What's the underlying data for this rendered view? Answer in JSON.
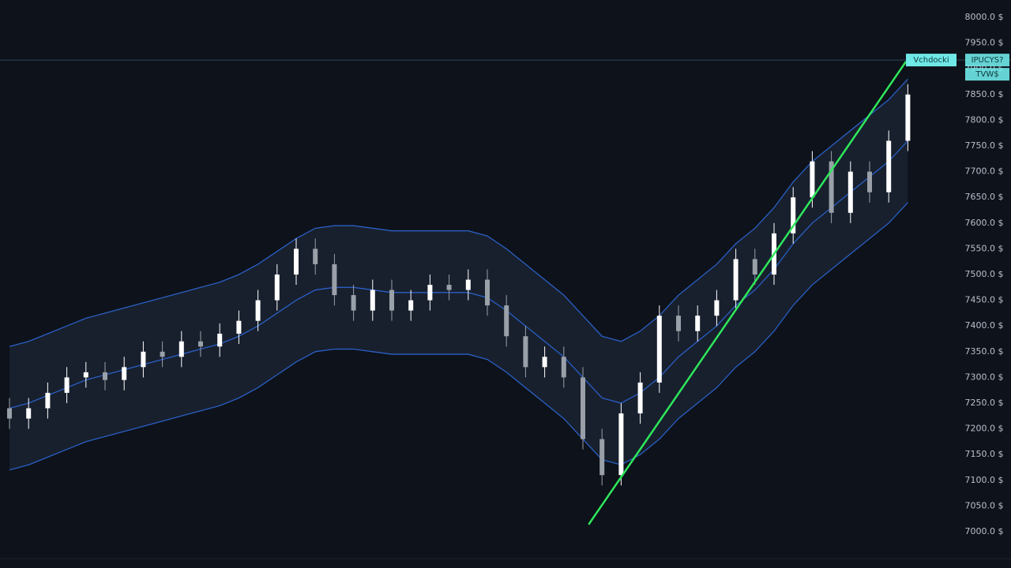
{
  "chart_data": {
    "type": "candlestick",
    "up_color": "#ffffff",
    "down_color": "#9aa0a8",
    "band_line_color": "#2a5fc4",
    "band_fill": "#1c2638",
    "trend_color": "#2ee85a",
    "ylim": [
      7000,
      8000
    ],
    "yticks": [
      {
        "value": 8000,
        "label": "8000.0 $"
      },
      {
        "value": 7950,
        "label": "7950.0 $"
      },
      {
        "value": 7900,
        "label": "7900.0 $"
      },
      {
        "value": 7850,
        "label": "7850.0 $"
      },
      {
        "value": 7800,
        "label": "7800.0 $"
      },
      {
        "value": 7750,
        "label": "7750.0 $"
      },
      {
        "value": 7700,
        "label": "7700.0 $"
      },
      {
        "value": 7650,
        "label": "7650.0 $"
      },
      {
        "value": 7600,
        "label": "7600.0 $"
      },
      {
        "value": 7550,
        "label": "7550.0 $"
      },
      {
        "value": 7500,
        "label": "7500.0 $"
      },
      {
        "value": 7450,
        "label": "7450.0 $"
      },
      {
        "value": 7400,
        "label": "7400.0 $"
      },
      {
        "value": 7350,
        "label": "7350.0 $"
      },
      {
        "value": 7300,
        "label": "7300.0 $"
      },
      {
        "value": 7250,
        "label": "7250.0 $"
      },
      {
        "value": 7200,
        "label": "7200.0 $"
      },
      {
        "value": 7150,
        "label": "7150.0 $"
      },
      {
        "value": 7100,
        "label": "7100.0 $"
      },
      {
        "value": 7050,
        "label": "7050.0 $"
      },
      {
        "value": 7000,
        "label": "7000.0 $"
      }
    ],
    "open": [
      7240,
      7220,
      7240,
      7270,
      7300,
      7310,
      7295,
      7320,
      7350,
      7340,
      7370,
      7360,
      7385,
      7410,
      7450,
      7500,
      7550,
      7520,
      7460,
      7430,
      7470,
      7430,
      7450,
      7480,
      7470,
      7490,
      7440,
      7380,
      7320,
      7340,
      7300,
      7180,
      7110,
      7230,
      7290,
      7420,
      7390,
      7420,
      7450,
      7530,
      7500,
      7580,
      7650,
      7720,
      7620,
      7700,
      7660,
      7760
    ],
    "high": [
      7260,
      7260,
      7290,
      7320,
      7330,
      7330,
      7340,
      7370,
      7370,
      7390,
      7390,
      7405,
      7430,
      7470,
      7520,
      7570,
      7570,
      7540,
      7480,
      7490,
      7490,
      7470,
      7500,
      7500,
      7510,
      7510,
      7460,
      7400,
      7360,
      7360,
      7320,
      7200,
      7250,
      7310,
      7440,
      7440,
      7440,
      7470,
      7550,
      7550,
      7600,
      7670,
      7740,
      7740,
      7720,
      7720,
      7780,
      7870
    ],
    "low": [
      7200,
      7200,
      7220,
      7250,
      7280,
      7275,
      7275,
      7300,
      7320,
      7320,
      7340,
      7340,
      7365,
      7390,
      7430,
      7480,
      7500,
      7440,
      7410,
      7410,
      7410,
      7410,
      7430,
      7450,
      7450,
      7420,
      7360,
      7300,
      7300,
      7280,
      7160,
      7090,
      7090,
      7210,
      7270,
      7370,
      7370,
      7400,
      7430,
      7480,
      7480,
      7560,
      7630,
      7600,
      7600,
      7640,
      7640,
      7740
    ],
    "close": [
      7220,
      7240,
      7270,
      7300,
      7310,
      7295,
      7320,
      7350,
      7340,
      7370,
      7360,
      7385,
      7410,
      7450,
      7500,
      7550,
      7520,
      7460,
      7430,
      7470,
      7430,
      7450,
      7480,
      7470,
      7490,
      7440,
      7380,
      7320,
      7340,
      7300,
      7180,
      7110,
      7230,
      7290,
      7420,
      7390,
      7420,
      7450,
      7530,
      7500,
      7580,
      7650,
      7720,
      7620,
      7700,
      7660,
      7760,
      7850
    ],
    "upper_band": [
      7360,
      7370,
      7385,
      7400,
      7415,
      7425,
      7435,
      7445,
      7455,
      7465,
      7475,
      7485,
      7500,
      7520,
      7545,
      7570,
      7590,
      7595,
      7595,
      7590,
      7585,
      7585,
      7585,
      7585,
      7585,
      7575,
      7550,
      7520,
      7490,
      7460,
      7420,
      7380,
      7370,
      7390,
      7420,
      7460,
      7490,
      7520,
      7560,
      7590,
      7630,
      7680,
      7720,
      7750,
      7780,
      7810,
      7840,
      7880
    ],
    "middle_band": [
      7240,
      7250,
      7265,
      7280,
      7295,
      7305,
      7315,
      7325,
      7335,
      7345,
      7355,
      7365,
      7380,
      7400,
      7425,
      7450,
      7470,
      7475,
      7475,
      7470,
      7465,
      7465,
      7465,
      7465,
      7465,
      7455,
      7430,
      7400,
      7370,
      7340,
      7300,
      7260,
      7250,
      7270,
      7300,
      7340,
      7370,
      7400,
      7440,
      7470,
      7510,
      7560,
      7600,
      7630,
      7660,
      7690,
      7720,
      7760
    ],
    "lower_band": [
      7120,
      7130,
      7145,
      7160,
      7175,
      7185,
      7195,
      7205,
      7215,
      7225,
      7235,
      7245,
      7260,
      7280,
      7305,
      7330,
      7350,
      7355,
      7355,
      7350,
      7345,
      7345,
      7345,
      7345,
      7345,
      7335,
      7310,
      7280,
      7250,
      7220,
      7180,
      7140,
      7130,
      7150,
      7180,
      7220,
      7250,
      7280,
      7320,
      7350,
      7390,
      7440,
      7480,
      7510,
      7540,
      7570,
      7600,
      7640
    ],
    "trendline": {
      "x": [
        30.3,
        46.9
      ],
      "values": [
        7014,
        7914
      ]
    },
    "price_line": {
      "value": 7917,
      "color": "#6fe8e8",
      "label": "Vchdocki",
      "tags": [
        "IPUCYS?",
        "TVW$"
      ]
    }
  }
}
